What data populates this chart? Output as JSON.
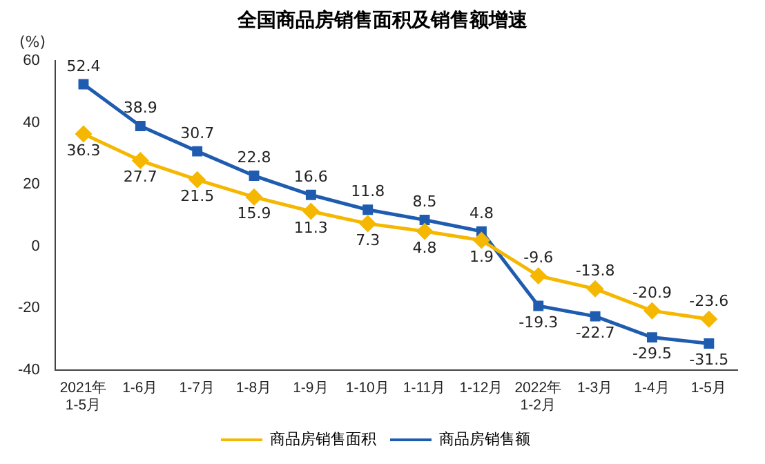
{
  "chart_data": {
    "type": "line",
    "title": "全国商品房销售面积及销售额增速",
    "ylabel": "(%)",
    "categories": [
      "2021年\n1-5月",
      "1-6月",
      "1-7月",
      "1-8月",
      "1-9月",
      "1-10月",
      "1-11月",
      "1-12月",
      "2022年\n1-2月",
      "1-3月",
      "1-4月",
      "1-5月"
    ],
    "series": [
      {
        "name": "商品房销售面积",
        "color": "#f5b700",
        "marker": "diamond",
        "values": [
          36.3,
          27.7,
          21.5,
          15.9,
          11.3,
          7.3,
          4.8,
          1.9,
          -9.6,
          -13.8,
          -20.9,
          -23.6
        ]
      },
      {
        "name": "商品房销售额",
        "color": "#1f5cb0",
        "marker": "square",
        "values": [
          52.4,
          38.9,
          30.7,
          22.8,
          16.6,
          11.8,
          8.5,
          4.8,
          -19.3,
          -22.7,
          -29.5,
          -31.5
        ]
      }
    ],
    "ylim": [
      -40,
      60
    ],
    "yticks": [
      -40,
      -20,
      0,
      20,
      40,
      60
    ],
    "grid": false,
    "legend": "bottom",
    "data_labels": true,
    "line_style": "solid"
  }
}
